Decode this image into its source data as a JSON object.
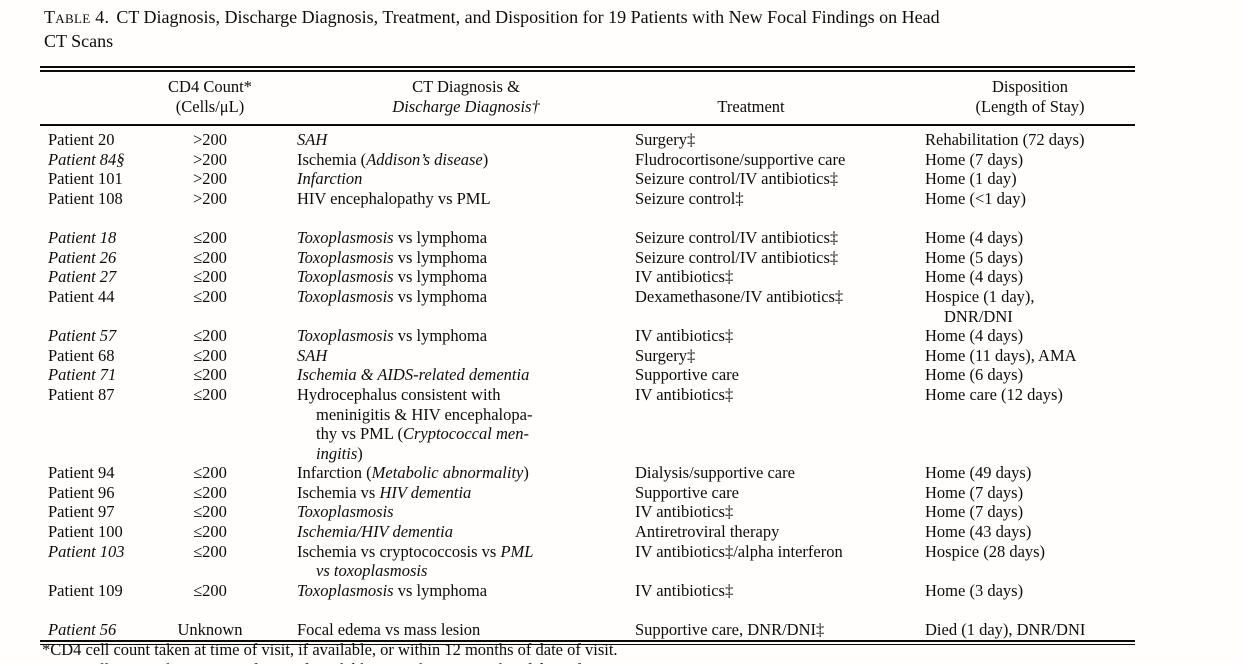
{
  "title": {
    "label": "Table 4.",
    "text": "CT Diagnosis, Discharge Diagnosis, Treatment, and Disposition for 19 Patients with New Focal Findings on Head\nCT Scans"
  },
  "table": {
    "headers": {
      "patient": "",
      "cd4_line1": "CD4 Count*",
      "cd4_line2": "(Cells/μL)",
      "diagnosis_line1": "CT Diagnosis &",
      "diagnosis_line2": "Discharge Diagnosis†",
      "treatment": "Treatment",
      "disposition_line1": "Disposition",
      "disposition_line2": "(Length of Stay)"
    },
    "groups": [
      [
        {
          "patient": [
            {
              "t": "Patient 20"
            }
          ],
          "cd4": ">200",
          "diagnosis": [
            {
              "t": "SAH",
              "i": true
            }
          ],
          "treatment": "Surgery‡",
          "disposition": "Rehabilitation (72 days)"
        },
        {
          "patient": [
            {
              "t": "Patient 84§",
              "i": true
            }
          ],
          "cd4": ">200",
          "diagnosis": [
            {
              "t": "Ischemia ("
            },
            {
              "t": "Addison’s disease",
              "i": true
            },
            {
              "t": ")"
            }
          ],
          "treatment": "Fludrocortisone/supportive care",
          "disposition": "Home (7 days)"
        },
        {
          "patient": [
            {
              "t": "Patient 101"
            }
          ],
          "cd4": ">200",
          "diagnosis": [
            {
              "t": "Infarction",
              "i": true
            }
          ],
          "treatment": "Seizure control/IV antibiotics‡",
          "disposition": "Home (1 day)"
        },
        {
          "patient": [
            {
              "t": "Patient 108"
            }
          ],
          "cd4": ">200",
          "diagnosis": [
            {
              "t": "HIV encephalopathy vs PML"
            }
          ],
          "treatment": "Seizure control‡",
          "disposition": "Home (<1 day)"
        }
      ],
      [
        {
          "patient": [
            {
              "t": "Patient 18",
              "i": true
            }
          ],
          "cd4": "≤200",
          "diagnosis": [
            {
              "t": "Toxoplasmosis",
              "i": true
            },
            {
              "t": " vs lymphoma"
            }
          ],
          "treatment": "Seizure control/IV antibiotics‡",
          "disposition": "Home (4 days)"
        },
        {
          "patient": [
            {
              "t": "Patient 26",
              "i": true
            }
          ],
          "cd4": "≤200",
          "diagnosis": [
            {
              "t": "Toxoplasmosis",
              "i": true
            },
            {
              "t": " vs lymphoma"
            }
          ],
          "treatment": "Seizure control/IV antibiotics‡",
          "disposition": "Home (5 days)"
        },
        {
          "patient": [
            {
              "t": "Patient 27",
              "i": true
            }
          ],
          "cd4": "≤200",
          "diagnosis": [
            {
              "t": "Toxoplasmosis",
              "i": true
            },
            {
              "t": " vs lymphoma"
            }
          ],
          "treatment": "IV antibiotics‡",
          "disposition": "Home (4 days)"
        },
        {
          "patient": [
            {
              "t": "Patient 44"
            }
          ],
          "cd4": "≤200",
          "diagnosis": [
            {
              "t": "Toxoplasmosis",
              "i": true
            },
            {
              "t": " vs lymphoma"
            }
          ],
          "treatment": "Dexamethasone/IV antibiotics‡",
          "disposition": "Hospice (1 day),\nDNR/DNI"
        },
        {
          "patient": [
            {
              "t": "Patient 57",
              "i": true
            }
          ],
          "cd4": "≤200",
          "diagnosis": [
            {
              "t": "Toxoplasmosis",
              "i": true
            },
            {
              "t": " vs lymphoma"
            }
          ],
          "treatment": "IV antibiotics‡",
          "disposition": "Home (4 days)"
        },
        {
          "patient": [
            {
              "t": "Patient 68"
            }
          ],
          "cd4": "≤200",
          "diagnosis": [
            {
              "t": "SAH",
              "i": true
            }
          ],
          "treatment": "Surgery‡",
          "disposition": "Home (11 days), AMA"
        },
        {
          "patient": [
            {
              "t": "Patient 71",
              "i": true
            }
          ],
          "cd4": "≤200",
          "diagnosis": [
            {
              "t": "Ischemia & AIDS-related dementia",
              "i": true
            }
          ],
          "treatment": "Supportive care",
          "disposition": "Home (6 days)"
        },
        {
          "patient": [
            {
              "t": "Patient 87"
            }
          ],
          "cd4": "≤200",
          "diagnosis": [
            {
              "t": "Hydrocephalus consistent with\nmeninigitis & HIV encephalopa-\nthy vs PML ("
            },
            {
              "t": "Cryptococcal men-\ningitis",
              "i": true
            },
            {
              "t": ")"
            }
          ],
          "treatment": "IV antibiotics‡",
          "disposition": "Home care (12 days)"
        },
        {
          "patient": [
            {
              "t": "Patient 94"
            }
          ],
          "cd4": "≤200",
          "diagnosis": [
            {
              "t": "Infarction ("
            },
            {
              "t": "Metabolic abnormality",
              "i": true
            },
            {
              "t": ")"
            }
          ],
          "treatment": "Dialysis/supportive care",
          "disposition": "Home (49 days)"
        },
        {
          "patient": [
            {
              "t": "Patient 96"
            }
          ],
          "cd4": "≤200",
          "diagnosis": [
            {
              "t": "Ischemia vs "
            },
            {
              "t": "HIV dementia",
              "i": true
            }
          ],
          "treatment": "Supportive care",
          "disposition": "Home (7 days)"
        },
        {
          "patient": [
            {
              "t": "Patient 97"
            }
          ],
          "cd4": "≤200",
          "diagnosis": [
            {
              "t": "Toxoplasmosis",
              "i": true
            }
          ],
          "treatment": "IV antibiotics‡",
          "disposition": "Home (7 days)"
        },
        {
          "patient": [
            {
              "t": "Patient 100"
            }
          ],
          "cd4": "≤200",
          "diagnosis": [
            {
              "t": "Ischemia/HIV dementia",
              "i": true
            }
          ],
          "treatment": "Antiretroviral therapy",
          "disposition": "Home (43 days)"
        },
        {
          "patient": [
            {
              "t": "Patient 103",
              "i": true
            }
          ],
          "cd4": "≤200",
          "diagnosis": [
            {
              "t": "Ischemia vs cryptococcosis vs "
            },
            {
              "t": "PML\nvs toxoplasmosis",
              "i": true
            }
          ],
          "treatment": "IV antibiotics‡/alpha interferon",
          "disposition": "Hospice (28 days)"
        },
        {
          "patient": [
            {
              "t": "Patient 109"
            }
          ],
          "cd4": "≤200",
          "diagnosis": [
            {
              "t": "Toxoplasmosis",
              "i": true
            },
            {
              "t": " vs lymphoma"
            }
          ],
          "treatment": "IV antibiotics‡",
          "disposition": "Home (3 days)"
        }
      ],
      [
        {
          "patient": [
            {
              "t": "Patient 56",
              "i": true
            }
          ],
          "cd4": "Unknown",
          "diagnosis": [
            {
              "t": "Focal edema vs mass lesion"
            }
          ],
          "treatment": "Supportive care, DNR/DNI‡",
          "disposition": "Died (1 day), DNR/DNI"
        }
      ]
    ]
  },
  "footnotes": {
    "line1": "*CD4 cell count taken at time of visit, if available, or within 12 months of date of visit."
  }
}
